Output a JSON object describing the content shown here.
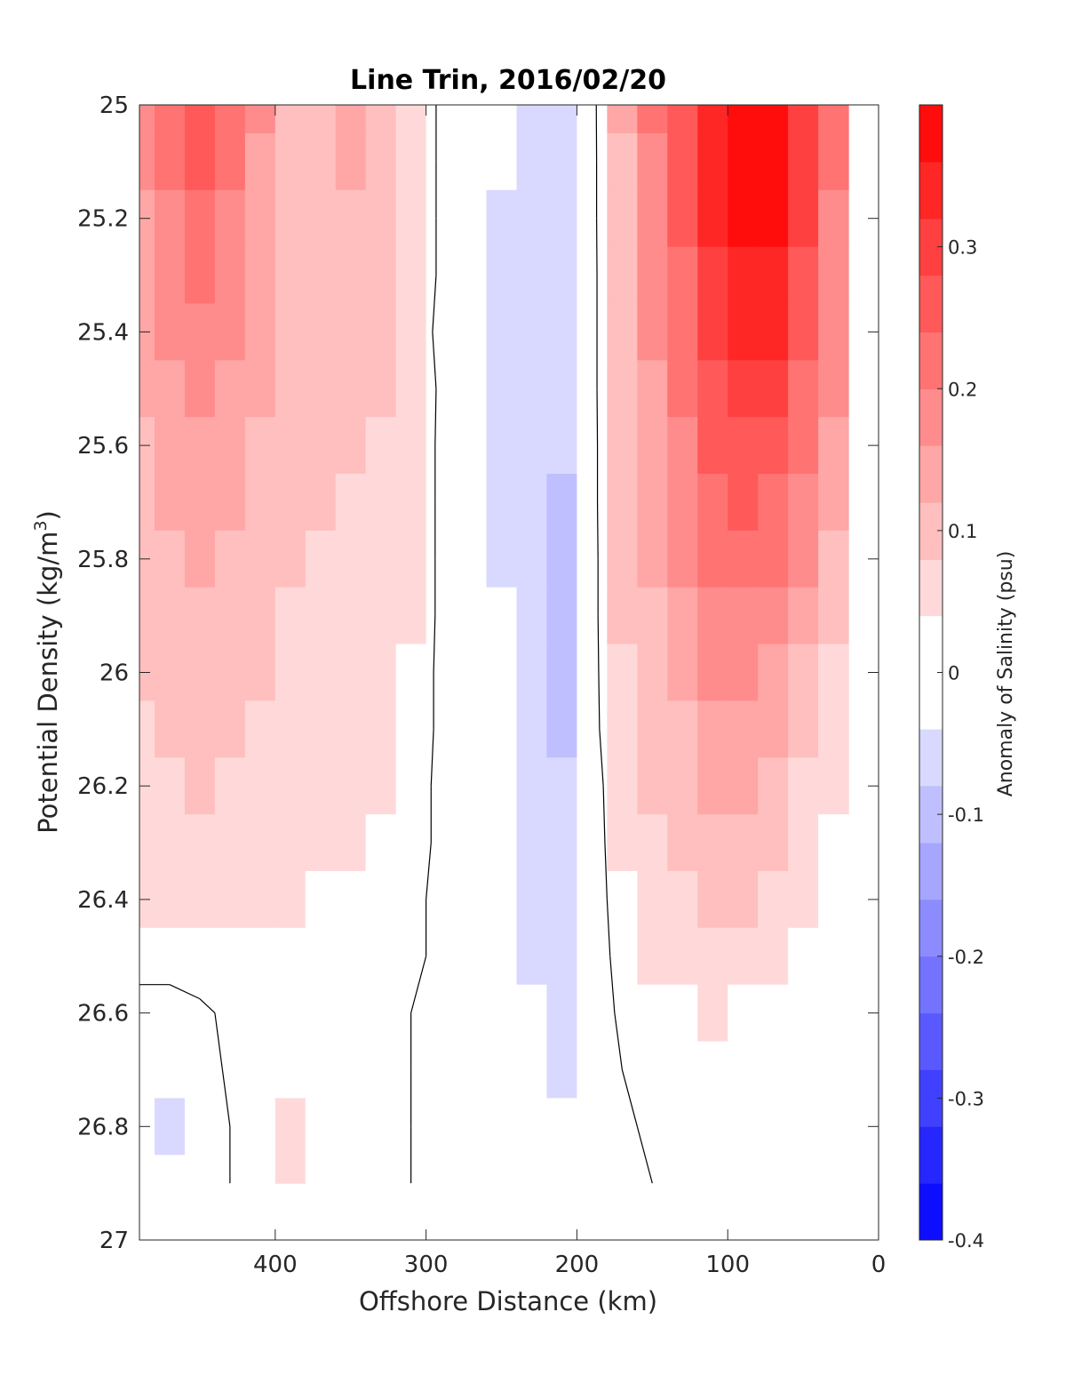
{
  "chart_data": {
    "type": "heatmap",
    "title": "Line Trin, 2016/02/20",
    "xlabel": "Offshore Distance (km)",
    "ylabel": "Potential Density (kg/m",
    "ylabel_superscript": "3",
    "ylabel_suffix": ")",
    "xlim": [
      490,
      0
    ],
    "ylim": [
      25,
      27
    ],
    "y_reversed": true,
    "x_reversed": true,
    "xticks": [
      400,
      300,
      200,
      100,
      0
    ],
    "yticks": [
      25,
      25.2,
      25.4,
      25.6,
      25.8,
      26,
      26.2,
      26.4,
      26.6,
      26.8,
      27
    ],
    "colorbar": {
      "label": "Anomaly of Salinity (psu)",
      "range": [
        -0.4,
        0.4
      ],
      "levels": 20,
      "ticks": [
        0.3,
        0.2,
        0.1,
        0,
        -0.1,
        -0.2,
        -0.3,
        -0.4
      ]
    },
    "data_extent": {
      "x": [
        490,
        20
      ],
      "y": [
        25,
        26.9
      ]
    },
    "grid": false,
    "zero_contour": true,
    "x": [
      490,
      470,
      450,
      430,
      410,
      390,
      370,
      350,
      330,
      310,
      290,
      270,
      250,
      230,
      210,
      190,
      170,
      150,
      130,
      110,
      90,
      70,
      50,
      30
    ],
    "y": [
      25.0,
      25.1,
      25.2,
      25.3,
      25.4,
      25.5,
      25.6,
      25.7,
      25.8,
      25.9,
      26.0,
      26.1,
      26.2,
      26.3,
      26.4,
      26.5,
      26.6,
      26.7,
      26.8,
      26.9
    ],
    "z": [
      [
        0.17,
        0.22,
        0.26,
        0.21,
        0.16,
        0.1,
        0.09,
        0.12,
        0.1,
        0.05,
        -0.01,
        -0.02,
        -0.04,
        -0.06,
        -0.05,
        -0.02,
        0.12,
        0.2,
        0.27,
        0.35,
        0.39,
        0.4,
        0.31,
        0.21
      ],
      [
        0.16,
        0.2,
        0.24,
        0.2,
        0.15,
        0.1,
        0.09,
        0.12,
        0.1,
        0.05,
        -0.01,
        -0.02,
        -0.04,
        -0.06,
        -0.05,
        -0.02,
        0.11,
        0.19,
        0.26,
        0.34,
        0.38,
        0.38,
        0.3,
        0.2
      ],
      [
        0.15,
        0.19,
        0.22,
        0.18,
        0.14,
        0.1,
        0.09,
        0.11,
        0.1,
        0.05,
        -0.01,
        -0.02,
        -0.05,
        -0.06,
        -0.05,
        -0.02,
        0.11,
        0.18,
        0.25,
        0.32,
        0.36,
        0.36,
        0.28,
        0.19
      ],
      [
        0.14,
        0.18,
        0.2,
        0.17,
        0.14,
        0.1,
        0.09,
        0.09,
        0.09,
        0.05,
        -0.01,
        -0.02,
        -0.05,
        -0.06,
        -0.05,
        -0.02,
        0.1,
        0.17,
        0.23,
        0.3,
        0.34,
        0.34,
        0.27,
        0.18
      ],
      [
        0.13,
        0.16,
        0.19,
        0.16,
        0.13,
        0.1,
        0.08,
        0.08,
        0.08,
        0.05,
        -0.02,
        -0.02,
        -0.05,
        -0.06,
        -0.06,
        -0.02,
        0.1,
        0.16,
        0.22,
        0.28,
        0.32,
        0.32,
        0.25,
        0.17
      ],
      [
        0.12,
        0.15,
        0.17,
        0.15,
        0.12,
        0.09,
        0.08,
        0.08,
        0.08,
        0.05,
        -0.01,
        -0.02,
        -0.05,
        -0.07,
        -0.07,
        -0.02,
        0.1,
        0.15,
        0.2,
        0.26,
        0.29,
        0.29,
        0.23,
        0.16
      ],
      [
        0.11,
        0.13,
        0.15,
        0.13,
        0.11,
        0.09,
        0.08,
        0.08,
        0.07,
        0.04,
        -0.01,
        -0.02,
        -0.05,
        -0.07,
        -0.08,
        -0.02,
        0.09,
        0.14,
        0.19,
        0.24,
        0.26,
        0.26,
        0.21,
        0.14
      ],
      [
        0.1,
        0.12,
        0.13,
        0.12,
        0.1,
        0.09,
        0.08,
        0.07,
        0.07,
        0.04,
        -0.01,
        -0.02,
        -0.05,
        -0.07,
        -0.09,
        -0.02,
        0.09,
        0.13,
        0.17,
        0.22,
        0.24,
        0.23,
        0.18,
        0.12
      ],
      [
        0.09,
        0.11,
        0.12,
        0.11,
        0.09,
        0.08,
        0.07,
        0.07,
        0.06,
        0.04,
        -0.01,
        -0.02,
        -0.05,
        -0.08,
        -0.1,
        -0.02,
        0.08,
        0.12,
        0.16,
        0.2,
        0.21,
        0.2,
        0.16,
        0.1
      ],
      [
        0.09,
        0.1,
        0.11,
        0.1,
        0.09,
        0.07,
        0.06,
        0.06,
        0.06,
        0.04,
        -0.01,
        -0.02,
        -0.04,
        -0.08,
        -0.11,
        -0.02,
        0.08,
        0.11,
        0.14,
        0.18,
        0.19,
        0.17,
        0.13,
        0.09
      ],
      [
        0.08,
        0.09,
        0.1,
        0.09,
        0.08,
        0.07,
        0.06,
        0.06,
        0.05,
        0.03,
        -0.01,
        -0.02,
        -0.04,
        -0.08,
        -0.11,
        -0.02,
        0.07,
        0.1,
        0.13,
        0.16,
        0.16,
        0.14,
        0.11,
        0.07
      ],
      [
        0.07,
        0.08,
        0.09,
        0.08,
        0.07,
        0.06,
        0.05,
        0.05,
        0.04,
        0.03,
        -0.01,
        -0.02,
        -0.04,
        -0.07,
        -0.1,
        -0.02,
        0.06,
        0.09,
        0.11,
        0.14,
        0.14,
        0.12,
        0.09,
        0.05
      ],
      [
        0.06,
        0.07,
        0.08,
        0.07,
        0.06,
        0.05,
        0.05,
        0.04,
        0.04,
        0.02,
        -0.01,
        -0.02,
        -0.04,
        -0.07,
        -0.08,
        -0.03,
        0.05,
        0.08,
        0.1,
        0.12,
        0.12,
        0.1,
        0.07,
        0.04
      ],
      [
        0.05,
        0.06,
        0.07,
        0.06,
        0.05,
        0.05,
        0.04,
        0.04,
        0.03,
        0.02,
        -0.01,
        -0.02,
        -0.04,
        -0.06,
        -0.07,
        -0.03,
        0.04,
        0.07,
        0.09,
        0.1,
        0.1,
        0.08,
        0.05,
        0.03
      ],
      [
        0.04,
        0.04,
        0.05,
        0.05,
        0.04,
        0.04,
        0.03,
        0.03,
        0.02,
        0.01,
        -0.01,
        -0.02,
        -0.03,
        -0.05,
        -0.06,
        -0.03,
        0.03,
        0.05,
        0.07,
        0.08,
        0.08,
        0.06,
        0.04,
        0.02
      ],
      [
        0.02,
        0.02,
        0.03,
        0.03,
        0.02,
        0.02,
        0.02,
        0.02,
        0.01,
        0.01,
        -0.01,
        -0.02,
        -0.03,
        -0.05,
        -0.05,
        -0.03,
        0.02,
        0.04,
        0.05,
        0.06,
        0.05,
        0.04,
        0.03,
        0.01
      ],
      [
        -0.02,
        -0.02,
        -0.01,
        0.01,
        0.01,
        0.01,
        0.01,
        0.01,
        0.01,
        0.0,
        -0.01,
        -0.02,
        -0.03,
        -0.04,
        -0.05,
        -0.03,
        0.01,
        0.03,
        0.03,
        0.04,
        0.03,
        0.02,
        0.02,
        0.01
      ],
      [
        -0.03,
        -0.04,
        -0.03,
        0.01,
        0.02,
        0.03,
        0.02,
        0.02,
        0.02,
        0.0,
        -0.01,
        -0.02,
        -0.02,
        -0.04,
        -0.05,
        -0.03,
        0.0,
        0.01,
        0.02,
        0.02,
        0.02,
        0.01,
        0.01,
        0.0
      ],
      [
        -0.03,
        -0.05,
        -0.03,
        0.0,
        0.03,
        0.04,
        0.03,
        0.02,
        0.02,
        0.0,
        -0.01,
        -0.01,
        -0.02,
        -0.03,
        -0.04,
        -0.03,
        -0.01,
        0.01,
        0.01,
        0.01,
        0.02,
        0.01,
        0.0,
        0.0
      ],
      [
        -0.02,
        -0.03,
        -0.02,
        0.0,
        0.03,
        0.05,
        0.03,
        0.01,
        0.01,
        0.0,
        -0.01,
        -0.01,
        -0.02,
        -0.02,
        -0.03,
        -0.02,
        -0.01,
        0.0,
        0.01,
        0.01,
        0.01,
        0.0,
        0.0,
        0.0
      ]
    ]
  }
}
